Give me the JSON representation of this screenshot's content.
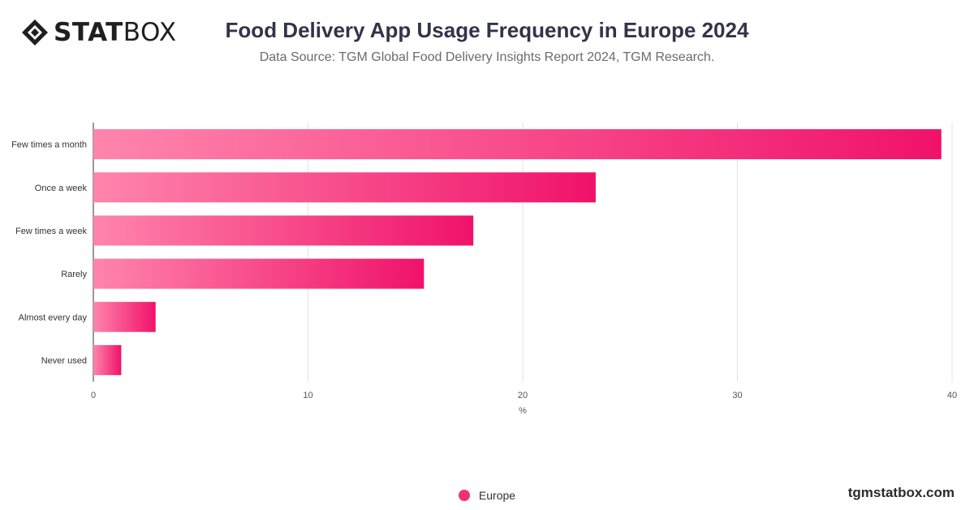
{
  "brand": {
    "logo_bold": "STAT",
    "logo_light": "BOX",
    "icon": "statbox-diamond-logo",
    "website": "tgmstatbox.com"
  },
  "colors": {
    "bar_start": "#ff85ad",
    "bar_end": "#f0126a",
    "legend": "#f0336f",
    "grid": "#e3e3e3",
    "axis": "#333333"
  },
  "chart_data": {
    "type": "bar",
    "orientation": "horizontal",
    "title": "Food Delivery App Usage Frequency in Europe 2024",
    "subtitle": "Data Source: TGM Global Food Delivery Insights Report 2024, TGM Research.",
    "categories": [
      "Few times a month",
      "Once a week",
      "Few times a week",
      "Rarely",
      "Almost every day",
      "Never used"
    ],
    "series": [
      {
        "name": "Europe",
        "values": [
          39.5,
          23.4,
          17.7,
          15.4,
          2.9,
          1.3
        ]
      }
    ],
    "xlabel": "%",
    "ylabel": "",
    "xlim": [
      0,
      40
    ],
    "xticks": [
      0,
      10,
      20,
      30,
      40
    ],
    "grid": true,
    "legend_position": "bottom-center"
  }
}
